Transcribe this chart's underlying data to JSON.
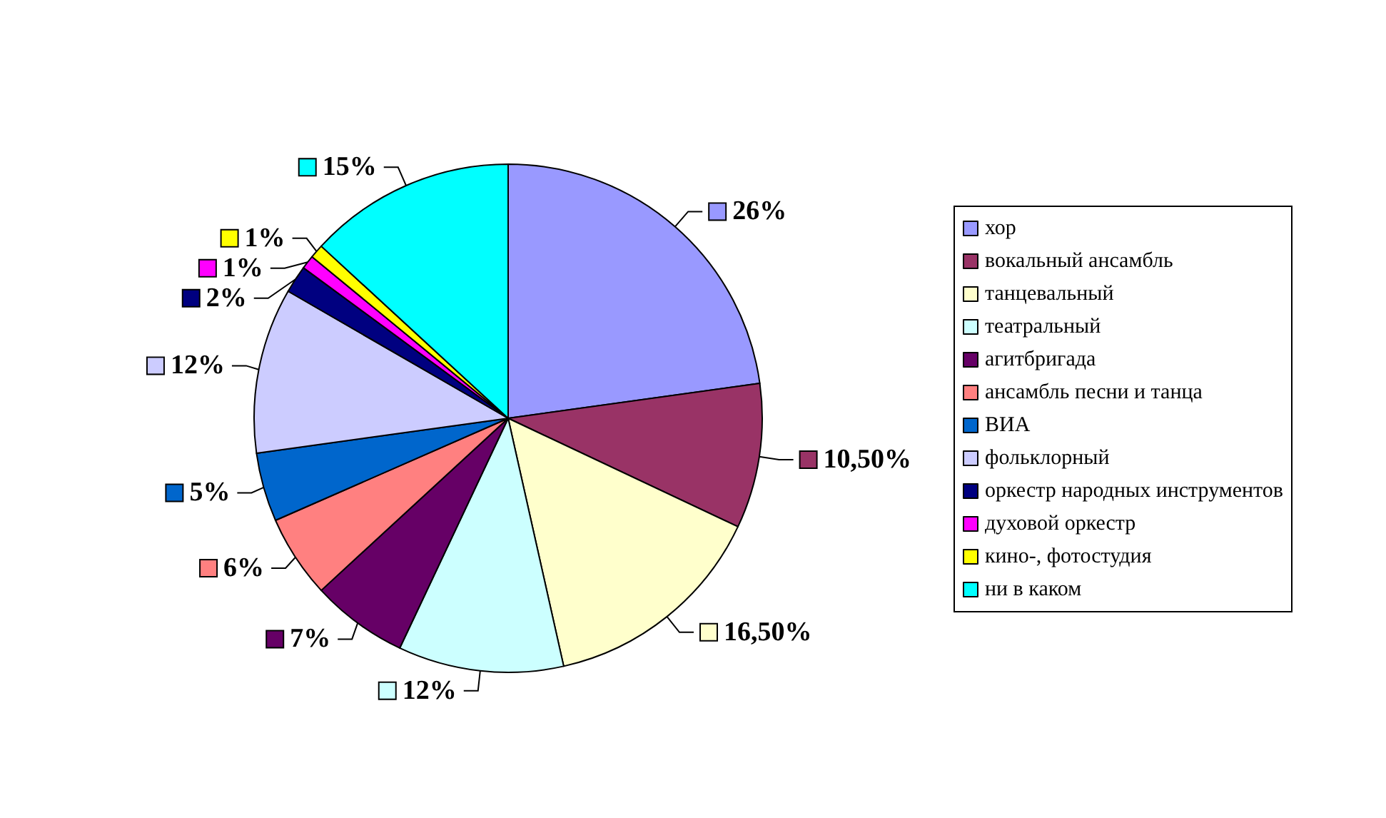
{
  "chart_data": {
    "type": "pie",
    "categories": [
      "хор",
      "вокальный ансамбль",
      "танцевальный",
      "театральный",
      "агитбригада",
      "ансамбль песни и танца",
      "ВИА",
      "фольклорный",
      "оркестр народных инструментов",
      "духовой оркестр",
      "кино-, фотостудия",
      "ни в каком"
    ],
    "values": [
      26,
      10.5,
      16.5,
      12,
      7,
      6,
      5,
      12,
      2,
      1,
      1,
      15
    ],
    "value_labels": [
      "26%",
      "10,50%",
      "16,50%",
      "12%",
      "7%",
      "6%",
      "5%",
      "12%",
      "2%",
      "1%",
      "1%",
      "15%"
    ],
    "colors": [
      "#9999ff",
      "#993366",
      "#ffffcc",
      "#ccffff",
      "#660066",
      "#ff8080",
      "#0066cc",
      "#ccccff",
      "#000080",
      "#ff00ff",
      "#ffff00",
      "#00ffff"
    ],
    "legend": "right"
  }
}
